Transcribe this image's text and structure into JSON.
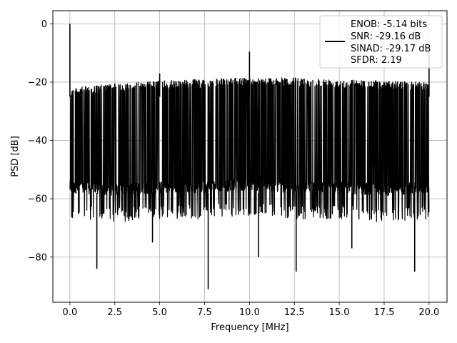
{
  "chart_data": {
    "type": "line",
    "xlabel": "Frequency [MHz]",
    "ylabel": "PSD [dB]",
    "xlim": [
      -0.95,
      21.0
    ],
    "ylim": [
      -95.5,
      4.5
    ],
    "xticks": [
      0.0,
      2.5,
      5.0,
      7.5,
      10.0,
      12.5,
      15.0,
      17.5,
      20.0
    ],
    "xtick_labels": [
      "0.0",
      "2.5",
      "5.0",
      "7.5",
      "10.0",
      "12.5",
      "15.0",
      "17.5",
      "20.0"
    ],
    "yticks": [
      0,
      -20,
      -40,
      -60,
      -80
    ],
    "ytick_labels": [
      "0",
      "−20",
      "−40",
      "−60",
      "−80"
    ],
    "grid": true,
    "line_color": "#000000",
    "legend": {
      "placement": "upper right",
      "lines": [
        "ENOB: -5.14 bits",
        "SNR: -29.16 dB",
        "SINAD: -29.17 dB",
        "SFDR: 2.19"
      ]
    },
    "series": [
      {
        "description": "noise floor envelope",
        "x": [
          0.0,
          2.5,
          5.0,
          7.5,
          10.0,
          12.5,
          15.0,
          17.5,
          20.0
        ],
        "upper": [
          -22,
          -20.5,
          -19.5,
          -19,
          -18.5,
          -18.5,
          -19,
          -19.5,
          -20
        ],
        "lower": [
          -62,
          -63,
          -62,
          -62,
          -61,
          -62,
          -62,
          -63,
          -62
        ]
      }
    ],
    "spikes": [
      {
        "x": 0.0,
        "y": 0.0
      },
      {
        "x": 10.0,
        "y": -9.5
      },
      {
        "x": 20.0,
        "y": -9.5
      },
      {
        "x": 5.0,
        "y": -17
      }
    ],
    "dips": [
      {
        "x": 1.5,
        "y": -84
      },
      {
        "x": 4.6,
        "y": -75
      },
      {
        "x": 7.7,
        "y": -91
      },
      {
        "x": 10.5,
        "y": -80
      },
      {
        "x": 12.6,
        "y": -85
      },
      {
        "x": 15.7,
        "y": -77
      },
      {
        "x": 19.2,
        "y": -85
      }
    ]
  }
}
